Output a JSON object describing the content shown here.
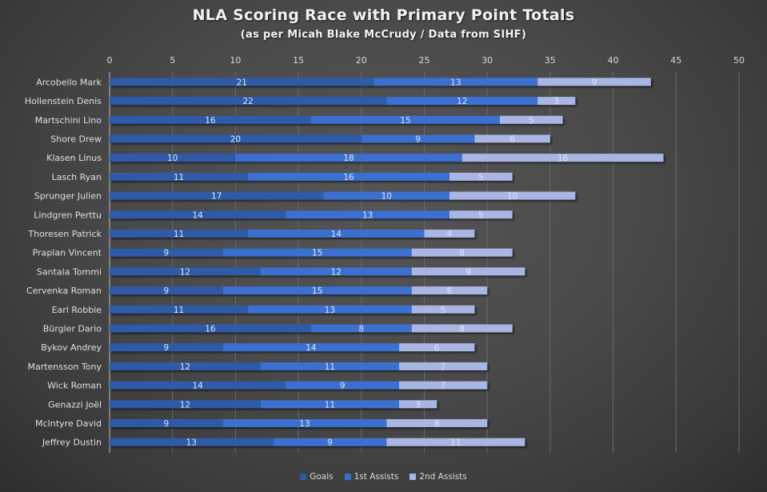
{
  "chart_data": {
    "type": "bar",
    "orientation": "horizontal",
    "stacked": true,
    "title": "NLA Scoring Race with Primary Point Totals",
    "subtitle": "(as per Micah Blake McCrudy / Data from SIHF)",
    "xlabel": "",
    "ylabel": "",
    "xlim": [
      0,
      50
    ],
    "x_ticks": [
      0,
      5,
      10,
      15,
      20,
      25,
      30,
      35,
      40,
      45,
      50
    ],
    "x_axis_position": "top",
    "grid": true,
    "legend_position": "bottom",
    "categories": [
      "Arcobello Mark",
      "Hollenstein Denis",
      "Martschini Lino",
      "Shore Drew",
      "Klasen Linus",
      "Lasch Ryan",
      "Sprunger Julien",
      "Lindgren Perttu",
      "Thoresen Patrick",
      "Praplan Vincent",
      "Santala Tommi",
      "Cervenka Roman",
      "Earl Robbie",
      "Bürgler Dario",
      "Bykov Andrey",
      "Martensson Tony",
      "Wick Roman",
      "Genazzi Joël",
      "McIntyre David",
      "Jeffrey Dustin"
    ],
    "series": [
      {
        "name": "Goals",
        "color": "#2f5aa8",
        "values": [
          21,
          22,
          16,
          20,
          10,
          11,
          17,
          14,
          11,
          9,
          12,
          9,
          11,
          16,
          9,
          12,
          14,
          12,
          9,
          13
        ]
      },
      {
        "name": "1st Assists",
        "color": "#3a6fd0",
        "values": [
          13,
          12,
          15,
          9,
          18,
          16,
          10,
          13,
          14,
          15,
          12,
          15,
          13,
          8,
          14,
          11,
          9,
          11,
          13,
          9
        ]
      },
      {
        "name": "2nd Assists",
        "color": "#a9b5e2",
        "values": [
          9,
          3,
          5,
          6,
          16,
          5,
          10,
          5,
          4,
          8,
          9,
          6,
          5,
          8,
          6,
          7,
          7,
          3,
          8,
          11
        ]
      }
    ]
  }
}
